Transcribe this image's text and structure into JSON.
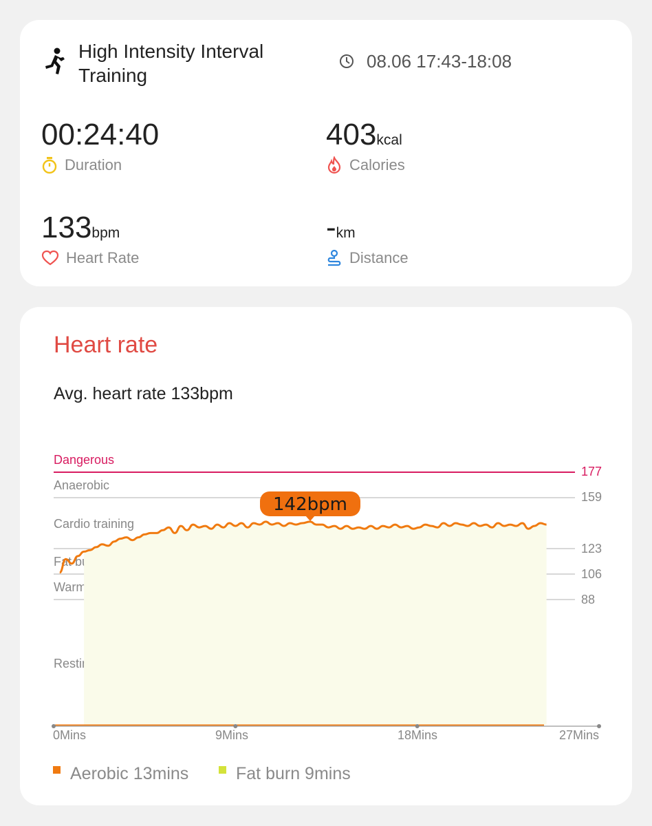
{
  "summary": {
    "workout_name": "High Intensity Interval Training",
    "time_range": "08.06 17:43-18:08",
    "duration": {
      "value": "00:24:40",
      "unit": "",
      "label": "Duration",
      "color": "#f2c318",
      "icon": "stopwatch-icon"
    },
    "calories": {
      "value": "403",
      "unit": "kcal",
      "label": "Calories",
      "color": "#ef5350",
      "icon": "flame-icon"
    },
    "heart_rate": {
      "value": "133",
      "unit": "bpm",
      "label": "Heart Rate",
      "color": "#ef5350",
      "icon": "heart-icon"
    },
    "distance": {
      "value": "-",
      "unit": "km",
      "label": "Distance",
      "color": "#2e86de",
      "icon": "route-icon"
    }
  },
  "heart_rate_card": {
    "title": "Heart rate",
    "avg_text": "Avg. heart rate 133bpm",
    "legend": [
      {
        "label": "Aerobic 13mins",
        "color": "#f07a10"
      },
      {
        "label": "Fat burn 9mins",
        "color": "#d4e23a"
      }
    ]
  },
  "chart_data": {
    "type": "line",
    "title": "Heart rate",
    "xlabel": "",
    "ylabel": "",
    "x_ticks": [
      "0Mins",
      "9Mins",
      "18Mins",
      "27Mins"
    ],
    "xlim": [
      0,
      27
    ],
    "zones": [
      {
        "name": "Dangerous",
        "threshold": 177,
        "color": "#d81b60"
      },
      {
        "name": "Anaerobic",
        "threshold": 159,
        "color": "#cccccc"
      },
      {
        "name": "Cardio training",
        "threshold": null
      },
      {
        "name": "Fat burning",
        "threshold": 123,
        "color": "#cccccc"
      },
      {
        "name": "Warm up",
        "threshold": 106,
        "color": "#cccccc"
      },
      {
        "name": "Resting",
        "threshold": 88,
        "color": "#cccccc"
      }
    ],
    "peak_label": "142bpm",
    "peak": {
      "x": 12.7,
      "y": 142
    },
    "series": [
      {
        "color": "#f07a10",
        "x": [
          0.3,
          0.6,
          0.9,
          1.2,
          1.5,
          1.8,
          2.1,
          2.4,
          2.7,
          3.0,
          3.3,
          3.6,
          3.9,
          4.2,
          4.5,
          4.8,
          5.1,
          5.4,
          5.7,
          6.0,
          6.3,
          6.6,
          6.9,
          7.2,
          7.5,
          7.8,
          8.1,
          8.4,
          8.7,
          9.0,
          9.3,
          9.6,
          9.9,
          10.2,
          10.5,
          10.8,
          11.1,
          11.4,
          11.7,
          12.0,
          12.3,
          12.7,
          13.0,
          13.3,
          13.6,
          13.9,
          14.2,
          14.5,
          14.8,
          15.1,
          15.4,
          15.7,
          16.0,
          16.3,
          16.6,
          16.9,
          17.2,
          17.5,
          17.8,
          18.1,
          18.4,
          18.7,
          19.0,
          19.3,
          19.6,
          19.9,
          20.2,
          20.5,
          20.8,
          21.1,
          21.4,
          21.7,
          22.0,
          22.3,
          22.6,
          22.9,
          23.2,
          23.5,
          23.8,
          24.1,
          24.4
        ],
        "y": [
          107,
          116,
          113,
          118,
          121,
          122,
          124,
          126,
          125,
          128,
          130,
          131,
          129,
          131,
          133,
          134,
          134,
          136,
          138,
          134,
          139,
          136,
          140,
          138,
          139,
          137,
          140,
          138,
          141,
          139,
          141,
          138,
          141,
          140,
          142,
          140,
          141,
          139,
          141,
          140,
          141,
          142,
          140,
          140,
          138,
          139,
          137,
          139,
          137,
          138,
          137,
          139,
          137,
          139,
          138,
          140,
          138,
          139,
          137,
          138,
          140,
          139,
          138,
          141,
          139,
          141,
          140,
          139,
          141,
          139,
          140,
          138,
          141,
          139,
          140,
          139,
          141,
          137,
          139,
          141,
          140
        ]
      }
    ]
  }
}
